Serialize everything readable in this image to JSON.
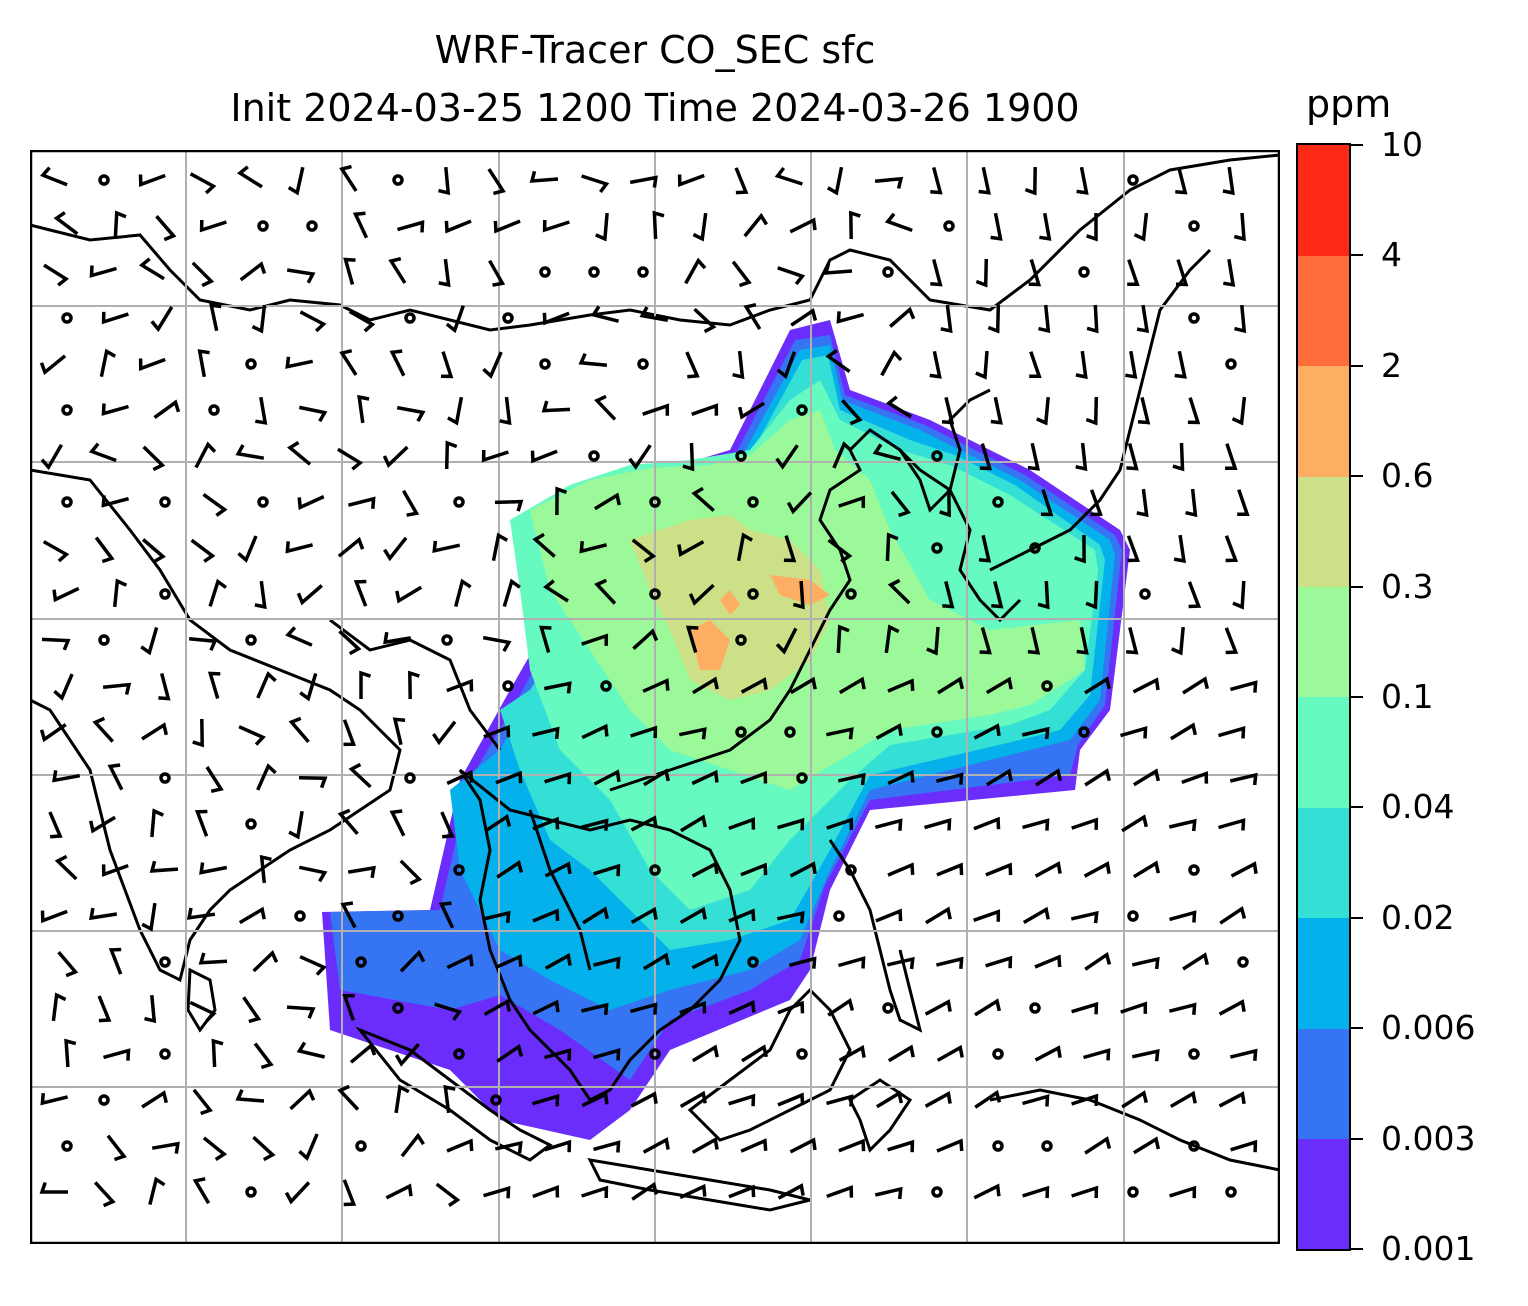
{
  "title": {
    "line1": "WRF-Tracer CO_SEC sfc",
    "line2": "Init 2024-03-25 1200 Time 2024-03-26 1900"
  },
  "colorbar": {
    "unit": "ppm",
    "levels": [
      "0.001",
      "0.003",
      "0.006",
      "0.02",
      "0.04",
      "0.1",
      "0.3",
      "0.6",
      "2",
      "4",
      "10"
    ],
    "colors": [
      "#6a2dfc",
      "#3575f4",
      "#05b1ea",
      "#34dfd6",
      "#66f9c0",
      "#9bf99a",
      "#cce187",
      "#fdae62",
      "#fd6e3b",
      "#fc2915"
    ]
  },
  "map": {
    "coastline_color": "#000000",
    "grid_color": "#b0b0b0",
    "calm_marker": "open-circle",
    "wind_symbol": "wind-barb"
  }
}
